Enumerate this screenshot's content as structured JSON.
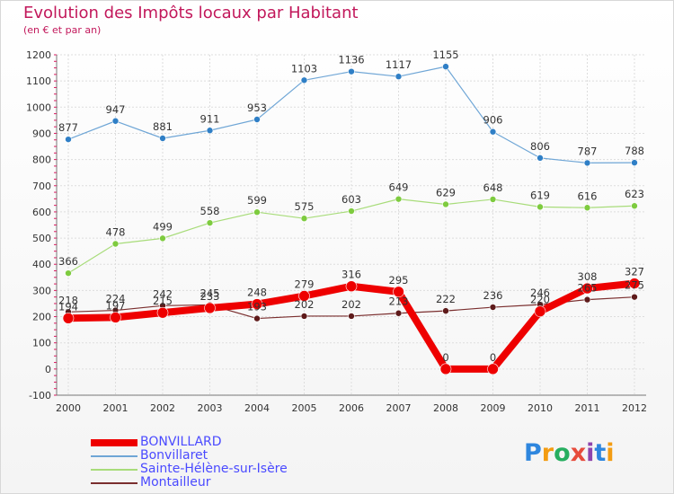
{
  "title": "Evolution des Impôts locaux par Habitant",
  "subtitle": "(en € et par an)",
  "logo": {
    "letters": [
      {
        "ch": "P",
        "color": "#2e86de"
      },
      {
        "ch": "r",
        "color": "#f39c12"
      },
      {
        "ch": "o",
        "color": "#27ae60"
      },
      {
        "ch": "x",
        "color": "#e74c3c"
      },
      {
        "ch": "i",
        "color": "#8e44ad"
      },
      {
        "ch": "t",
        "color": "#2e86de"
      },
      {
        "ch": "i",
        "color": "#f39c12"
      }
    ]
  },
  "chart_data": {
    "type": "line",
    "categories": [
      "2000",
      "2001",
      "2002",
      "2003",
      "2004",
      "2005",
      "2006",
      "2007",
      "2008",
      "2009",
      "2010",
      "2011",
      "2012"
    ],
    "ylim": [
      -100,
      1200
    ],
    "yticks": [
      -100,
      0,
      100,
      200,
      300,
      400,
      500,
      600,
      700,
      800,
      900,
      1000,
      1100,
      1200
    ],
    "grid": true,
    "legend_position": "bottom-left",
    "series": [
      {
        "name": "BONVILLARD",
        "color": "#ee0000",
        "marker": "#ee0000",
        "lineWidth": 8,
        "markerR": 6,
        "values": [
          194,
          197,
          215,
          233,
          248,
          279,
          316,
          295,
          0,
          0,
          220,
          308,
          327
        ]
      },
      {
        "name": "Bonvillaret",
        "color": "#6fa6d6",
        "marker": "#2f7fc6",
        "lineWidth": 1.2,
        "markerR": 3.5,
        "values": [
          877,
          947,
          881,
          911,
          953,
          1103,
          1136,
          1117,
          1155,
          906,
          806,
          787,
          788
        ]
      },
      {
        "name": "Sainte-Hélène-sur-Isère",
        "color": "#a8dc7a",
        "marker": "#7ecb3f",
        "lineWidth": 1.2,
        "markerR": 3.5,
        "values": [
          366,
          478,
          499,
          558,
          599,
          575,
          603,
          649,
          629,
          648,
          619,
          616,
          623
        ]
      },
      {
        "name": "Montailleur",
        "color": "#7a2e2e",
        "marker": "#5e1a1a",
        "lineWidth": 1.2,
        "markerR": 3.5,
        "values": [
          218,
          224,
          242,
          245,
          193,
          202,
          202,
          213,
          222,
          236,
          246,
          265,
          275
        ]
      }
    ]
  }
}
